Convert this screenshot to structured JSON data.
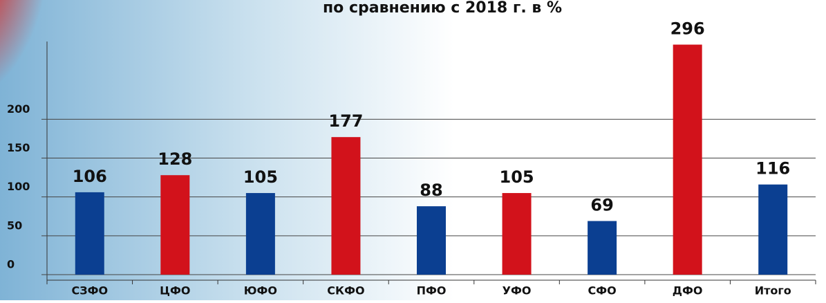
{
  "chart_data": {
    "type": "bar",
    "title": "по сравнению с 2018 г. в %",
    "categories": [
      "СЗФО",
      "ЦФО",
      "ЮФО",
      "СКФО",
      "ПФО",
      "УФО",
      "СФО",
      "ДФО",
      "Итого"
    ],
    "values": [
      106,
      128,
      105,
      177,
      88,
      105,
      69,
      296,
      116
    ],
    "colors": [
      "#0b3f91",
      "#d2121b",
      "#0b3f91",
      "#d2121b",
      "#0b3f91",
      "#d2121b",
      "#0b3f91",
      "#d2121b",
      "#0b3f91"
    ],
    "ylim": [
      0,
      300
    ],
    "yticks": [
      0,
      50,
      100,
      150,
      200
    ],
    "grid": true
  }
}
